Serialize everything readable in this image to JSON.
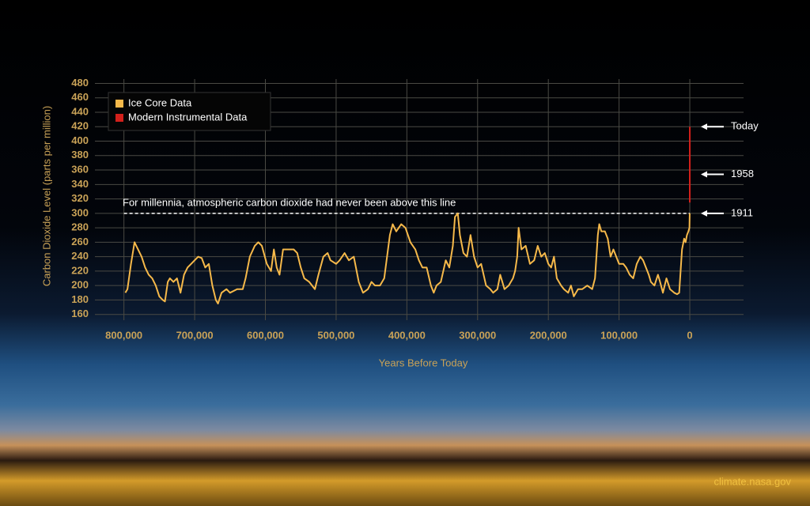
{
  "chart_data": {
    "type": "line",
    "x_label": "Years Before Today",
    "y_label": "Carbon Dioxide Level (parts per million)",
    "xlim": [
      841000,
      -76000
    ],
    "ylim": [
      152,
      486
    ],
    "xticks": [
      {
        "value": 800000,
        "label": "800,000"
      },
      {
        "value": 700000,
        "label": "700,000"
      },
      {
        "value": 600000,
        "label": "600,000"
      },
      {
        "value": 500000,
        "label": "500,000"
      },
      {
        "value": 400000,
        "label": "400,000"
      },
      {
        "value": 300000,
        "label": "300,000"
      },
      {
        "value": 200000,
        "label": "200,000"
      },
      {
        "value": 100000,
        "label": "100,000"
      },
      0
    ],
    "yticks": [
      160,
      180,
      200,
      220,
      240,
      260,
      280,
      300,
      320,
      340,
      360,
      380,
      400,
      420,
      440,
      460,
      480
    ],
    "grid": true,
    "legend": "upper left",
    "series": [
      {
        "name": "Ice Core Data",
        "color": "#f6b94a",
        "x": [
          798000,
          795000,
          790000,
          785000,
          780000,
          775000,
          770000,
          765000,
          760000,
          755000,
          750000,
          745000,
          742000,
          738000,
          735000,
          730000,
          725000,
          720000,
          715000,
          710000,
          705000,
          700000,
          695000,
          690000,
          685000,
          680000,
          675000,
          670000,
          667000,
          662000,
          655000,
          650000,
          640000,
          632000,
          628000,
          622000,
          615000,
          610000,
          605000,
          598000,
          592000,
          588000,
          584000,
          580000,
          575000,
          568000,
          560000,
          555000,
          550000,
          545000,
          538000,
          530000,
          525000,
          518000,
          512000,
          508000,
          500000,
          495000,
          488000,
          482000,
          475000,
          472000,
          468000,
          462000,
          455000,
          450000,
          445000,
          438000,
          432000,
          428000,
          424000,
          420000,
          415000,
          408000,
          402000,
          395000,
          388000,
          383000,
          378000,
          372000,
          366000,
          362000,
          358000,
          352000,
          345000,
          340000,
          335000,
          332000,
          328000,
          325000,
          320000,
          315000,
          310000,
          305000,
          300000,
          295000,
          288000,
          282000,
          278000,
          272000,
          268000,
          262000,
          256000,
          250000,
          247000,
          244000,
          242000,
          238000,
          232000,
          226000,
          220000,
          215000,
          210000,
          205000,
          200000,
          196000,
          192000,
          188000,
          182000,
          178000,
          172000,
          168000,
          164000,
          158000,
          152000,
          145000,
          138000,
          134000,
          130000,
          128000,
          125000,
          120000,
          116000,
          112000,
          108000,
          104000,
          100000,
          94000,
          90000,
          85000,
          80000,
          75000,
          70000,
          66000,
          62000,
          58000,
          55000,
          50000,
          45000,
          42000,
          38000,
          33000,
          28000,
          22000,
          18000,
          15000,
          11000,
          8000,
          6000,
          4000,
          2000,
          500,
          113
        ],
        "values": [
          190,
          195,
          230,
          260,
          250,
          240,
          225,
          215,
          210,
          200,
          185,
          180,
          178,
          205,
          210,
          205,
          210,
          190,
          215,
          225,
          230,
          235,
          240,
          238,
          225,
          230,
          200,
          180,
          175,
          190,
          195,
          190,
          195,
          195,
          210,
          240,
          255,
          260,
          255,
          230,
          220,
          250,
          225,
          215,
          250,
          250,
          250,
          245,
          225,
          210,
          205,
          195,
          215,
          240,
          245,
          235,
          230,
          235,
          245,
          235,
          240,
          225,
          205,
          190,
          195,
          205,
          200,
          200,
          210,
          240,
          270,
          285,
          275,
          285,
          280,
          260,
          250,
          235,
          225,
          225,
          200,
          190,
          200,
          205,
          235,
          225,
          255,
          295,
          300,
          270,
          245,
          240,
          270,
          240,
          225,
          230,
          200,
          195,
          190,
          195,
          215,
          195,
          200,
          210,
          220,
          240,
          280,
          250,
          255,
          230,
          235,
          255,
          240,
          245,
          230,
          225,
          240,
          210,
          200,
          195,
          190,
          200,
          185,
          195,
          195,
          200,
          195,
          210,
          270,
          285,
          275,
          275,
          265,
          240,
          250,
          240,
          230,
          230,
          225,
          215,
          210,
          230,
          240,
          235,
          225,
          215,
          205,
          200,
          215,
          205,
          190,
          210,
          195,
          190,
          188,
          190,
          250,
          265,
          260,
          270,
          275,
          280,
          300
        ]
      },
      {
        "name": "Modern Instrumental Data",
        "color": "#d3201b",
        "x": [
          66,
          40,
          20,
          10,
          0
        ],
        "values": [
          315,
          330,
          370,
          390,
          420
        ]
      }
    ],
    "reference_line": {
      "value": 300,
      "label": "For millennia, atmospheric carbon dioxide had never been above this line"
    },
    "annotations": [
      {
        "text": "Today",
        "y": 420
      },
      {
        "text": "1958",
        "y": 354
      },
      {
        "text": "1911",
        "y": 300
      }
    ],
    "source": "climate.nasa.gov"
  }
}
